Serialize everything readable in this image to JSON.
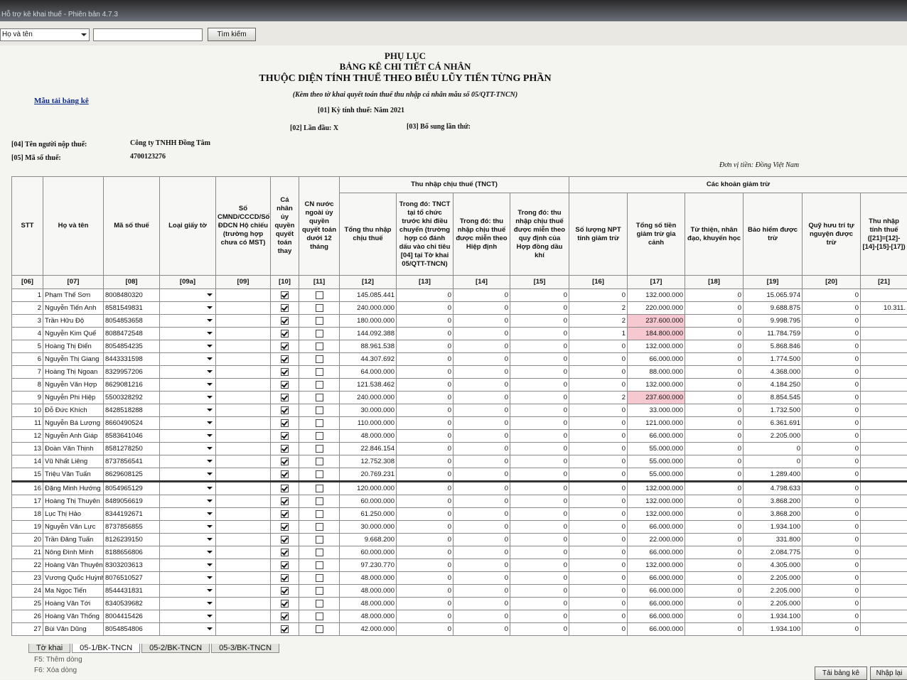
{
  "window": {
    "title": "Hỗ trợ kê khai thuế - Phiên bản 4.7.3",
    "search_field": "Họ và tên",
    "search_button": "Tìm kiếm"
  },
  "header": {
    "appendix": "PHỤ LỤC",
    "title": "BẢNG KÊ CHI TIẾT CÁ NHÂN",
    "subtitle": "THUỘC DIỆN TÍNH THUẾ THEO BIỂU LŨY TIẾN TỪNG PHẦN",
    "note": "(Kèm theo tờ khai quyết toán thuế thu nhập cá nhân mẫu số 05/QTT-TNCN)",
    "period": "[01] Kỳ tính thuế: Năm 2021",
    "download_link": "Mẫu tải bảng kê",
    "first_time": "[02] Lần đầu: X",
    "supplement": "[03] Bổ sung lần thứ:",
    "taxpayer_label": "[04] Tên người nộp thuế:",
    "taxpayer": "Công ty TNHH Đồng Tâm",
    "tax_code_label": "[05] Mã số thuế:",
    "tax_code": "4700123276",
    "currency": "Đơn vị tiền: Đồng Việt Nam"
  },
  "table": {
    "groups": [
      "Thu nhập chịu thuế (TNCT)",
      "Các khoản giảm trừ"
    ],
    "columns": [
      "STT",
      "Họ và tên",
      "Mã số thuế",
      "Loại giấy tờ",
      "Số CMND/CCCD/Số ĐDCN Hộ chiếu (trường hợp chưa có MST)",
      "Cá nhân ủy quyền quyết toán thay",
      "CN nước ngoài ủy quyền quyết toán dưới 12 tháng",
      "Tổng thu nhập chịu thuế",
      "Trong đó: TNCT tại tổ chức trước khi điều chuyển (trường hợp có đánh dấu vào chỉ tiêu [04] tại Tờ khai 05/QTT-TNCN)",
      "Trong đó: thu nhập chịu thuế được miễn theo Hiệp định",
      "Trong đó: thu nhập chịu thuế được miễn theo quy định của Hợp đồng dầu khí",
      "Số lượng NPT tính giảm trừ",
      "Tổng số tiền giảm trừ gia cảnh",
      "Từ thiện, nhân đạo, khuyến học",
      "Bảo hiểm được trừ",
      "Quỹ hưu trí tự nguyện được trừ",
      "Thu nhập tính thuế ([21]=[12]-[14]-[15]-[17])"
    ],
    "codes": [
      "[06]",
      "[07]",
      "[08]",
      "[09a]",
      "[09]",
      "[10]",
      "[11]",
      "[12]",
      "[13]",
      "[14]",
      "[15]",
      "[16]",
      "[17]",
      "[18]",
      "[19]",
      "[20]",
      "[21]"
    ],
    "rows": [
      [
        1,
        "Phạm Thế Sơn",
        "8008480320",
        "145.085.441",
        "0",
        "0",
        "0",
        "0",
        "132.000.000",
        "0",
        "15.065.974",
        "0",
        null
      ],
      [
        2,
        "Nguyễn Tiến Anh",
        "8581549831",
        "240.000.000",
        "0",
        "0",
        "0",
        "2",
        "220.000.000",
        "0",
        "9.688.875",
        "0",
        "10.311."
      ],
      [
        3,
        "Trần Hữu Độ",
        "8054853658",
        "180.000.000",
        "0",
        "0",
        "0",
        "2",
        "237.600.000",
        "0",
        "9.998.795",
        "0",
        null
      ],
      [
        4,
        "Nguyễn Kim Quế",
        "8088472548",
        "144.092.388",
        "0",
        "0",
        "0",
        "1",
        "184.800.000",
        "0",
        "11.784.759",
        "0",
        null
      ],
      [
        5,
        "Hoàng Thị Điển",
        "8054854235",
        "88.961.538",
        "0",
        "0",
        "0",
        "0",
        "132.000.000",
        "0",
        "5.868.846",
        "0",
        null
      ],
      [
        6,
        "Nguyễn Thị Giang",
        "8443331598",
        "44.307.692",
        "0",
        "0",
        "0",
        "0",
        "66.000.000",
        "0",
        "1.774.500",
        "0",
        null
      ],
      [
        7,
        "Hoàng Thị Ngoan",
        "8329957206",
        "64.000.000",
        "0",
        "0",
        "0",
        "0",
        "88.000.000",
        "0",
        "4.368.000",
        "0",
        null
      ],
      [
        8,
        "Nguyễn Văn Hợp",
        "8629081216",
        "121.538.462",
        "0",
        "0",
        "0",
        "0",
        "132.000.000",
        "0",
        "4.184.250",
        "0",
        null
      ],
      [
        9,
        "Nguyễn Phi Hiệp",
        "5500328292",
        "240.000.000",
        "0",
        "0",
        "0",
        "2",
        "237.600.000",
        "0",
        "8.854.545",
        "0",
        null
      ],
      [
        10,
        "Đỗ Đức Khích",
        "8428518288",
        "30.000.000",
        "0",
        "0",
        "0",
        "0",
        "33.000.000",
        "0",
        "1.732.500",
        "0",
        null
      ],
      [
        11,
        "Nguyễn Bá Lượng",
        "8660490524",
        "110.000.000",
        "0",
        "0",
        "0",
        "0",
        "121.000.000",
        "0",
        "6.361.691",
        "0",
        null
      ],
      [
        12,
        "Nguyễn Anh Giáp",
        "8583641046",
        "48.000.000",
        "0",
        "0",
        "0",
        "0",
        "66.000.000",
        "0",
        "2.205.000",
        "0",
        null
      ],
      [
        13,
        "Đoàn Văn Thịnh",
        "8581278250",
        "22.846.154",
        "0",
        "0",
        "0",
        "0",
        "55.000.000",
        "0",
        "0",
        "0",
        null
      ],
      [
        14,
        "Vũ Nhất Liêng",
        "8737856541",
        "12.752.308",
        "0",
        "0",
        "0",
        "0",
        "55.000.000",
        "0",
        "0",
        "0",
        null
      ],
      [
        15,
        "Triệu Văn Tuấn",
        "8629608125",
        "20.769.231",
        "0",
        "0",
        "0",
        "0",
        "55.000.000",
        "0",
        "1.289.400",
        "0",
        null
      ],
      [
        16,
        "Đặng Minh Hướng",
        "8054965129",
        "120.000.000",
        "0",
        "0",
        "0",
        "0",
        "132.000.000",
        "0",
        "4.798.633",
        "0",
        null
      ],
      [
        17,
        "Hoàng Thị Thuyên",
        "8489056619",
        "60.000.000",
        "0",
        "0",
        "0",
        "0",
        "132.000.000",
        "0",
        "3.868.200",
        "0",
        null
      ],
      [
        18,
        "Lục Thị Hảo",
        "8344192671",
        "61.250.000",
        "0",
        "0",
        "0",
        "0",
        "132.000.000",
        "0",
        "3.868.200",
        "0",
        null
      ],
      [
        19,
        "Nguyễn Văn Lực",
        "8737856855",
        "30.000.000",
        "0",
        "0",
        "0",
        "0",
        "66.000.000",
        "0",
        "1.934.100",
        "0",
        null
      ],
      [
        20,
        "Trần Đăng Tuấn",
        "8126239150",
        "9.668.200",
        "0",
        "0",
        "0",
        "0",
        "22.000.000",
        "0",
        "331.800",
        "0",
        null
      ],
      [
        21,
        "Nông Đình Minh",
        "8188656806",
        "60.000.000",
        "0",
        "0",
        "0",
        "0",
        "66.000.000",
        "0",
        "2.084.775",
        "0",
        null
      ],
      [
        22,
        "Hoàng Văn Thuyên",
        "8303203613",
        "97.230.770",
        "0",
        "0",
        "0",
        "0",
        "132.000.000",
        "0",
        "4.305.000",
        "0",
        null
      ],
      [
        23,
        "Vương Quốc Huỳnh",
        "8076510527",
        "48.000.000",
        "0",
        "0",
        "0",
        "0",
        "66.000.000",
        "0",
        "2.205.000",
        "0",
        null
      ],
      [
        24,
        "Ma Ngọc Tiến",
        "8544431831",
        "48.000.000",
        "0",
        "0",
        "0",
        "0",
        "66.000.000",
        "0",
        "2.205.000",
        "0",
        null
      ],
      [
        25,
        "Hoàng Văn Tới",
        "8340539682",
        "48.000.000",
        "0",
        "0",
        "0",
        "0",
        "66.000.000",
        "0",
        "2.205.000",
        "0",
        null
      ],
      [
        26,
        "Hoàng Văn Thống",
        "8004415426",
        "48.000.000",
        "0",
        "0",
        "0",
        "0",
        "66.000.000",
        "0",
        "1.934.100",
        "0",
        null
      ],
      [
        27,
        "Bùi Văn Dũng",
        "8054854806",
        "42.000.000",
        "0",
        "0",
        "0",
        "0",
        "66.000.000",
        "0",
        "1.934.100",
        "0",
        null
      ]
    ]
  },
  "footer": {
    "tabs": [
      "Tờ khai",
      "05-1/BK-TNCN",
      "05-2/BK-TNCN",
      "05-3/BK-TNCN"
    ],
    "hints": [
      "F5: Thêm dòng",
      "F6: Xóa dòng"
    ],
    "buttons": [
      "Tải bảng kê",
      "Nhập lại"
    ]
  }
}
